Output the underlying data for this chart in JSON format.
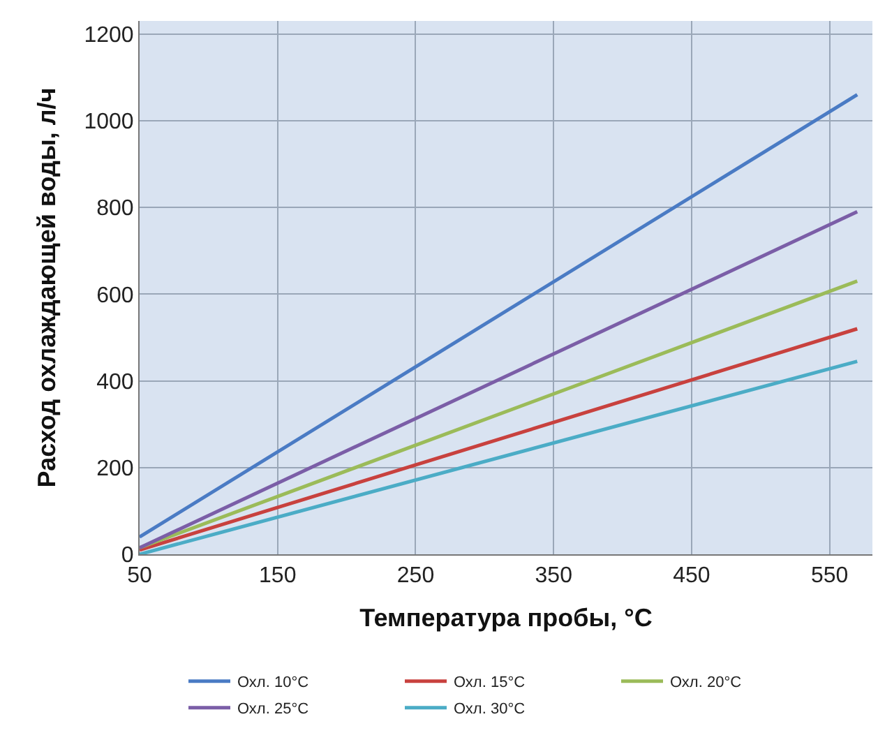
{
  "chart_data": {
    "type": "line",
    "xlabel": "Температура пробы, °C",
    "ylabel": "Расход охлаждающей воды, л/ч",
    "xlim": [
      50,
      581
    ],
    "xticks": [
      50,
      150,
      250,
      350,
      450,
      550
    ],
    "ylim": [
      0,
      1230
    ],
    "yticks": [
      0,
      200,
      400,
      600,
      800,
      1000,
      1200
    ],
    "grid": true,
    "legend": "bottom",
    "marker": "none",
    "line_style": "solid",
    "x": [
      50,
      570
    ],
    "series": [
      {
        "name": "Охл. 10°C",
        "color": "#4a7bc4",
        "values": [
          40,
          1060
        ]
      },
      {
        "name": "Охл. 15°C",
        "color": "#c8413e",
        "values": [
          10,
          520
        ]
      },
      {
        "name": "Охл. 20°C",
        "color": "#9bbb59",
        "values": [
          15,
          630
        ]
      },
      {
        "name": "Охл. 25°C",
        "color": "#7b5ea7",
        "values": [
          15,
          790
        ]
      },
      {
        "name": "Охл. 30°C",
        "color": "#4bacc6",
        "values": [
          0,
          445
        ]
      }
    ]
  }
}
